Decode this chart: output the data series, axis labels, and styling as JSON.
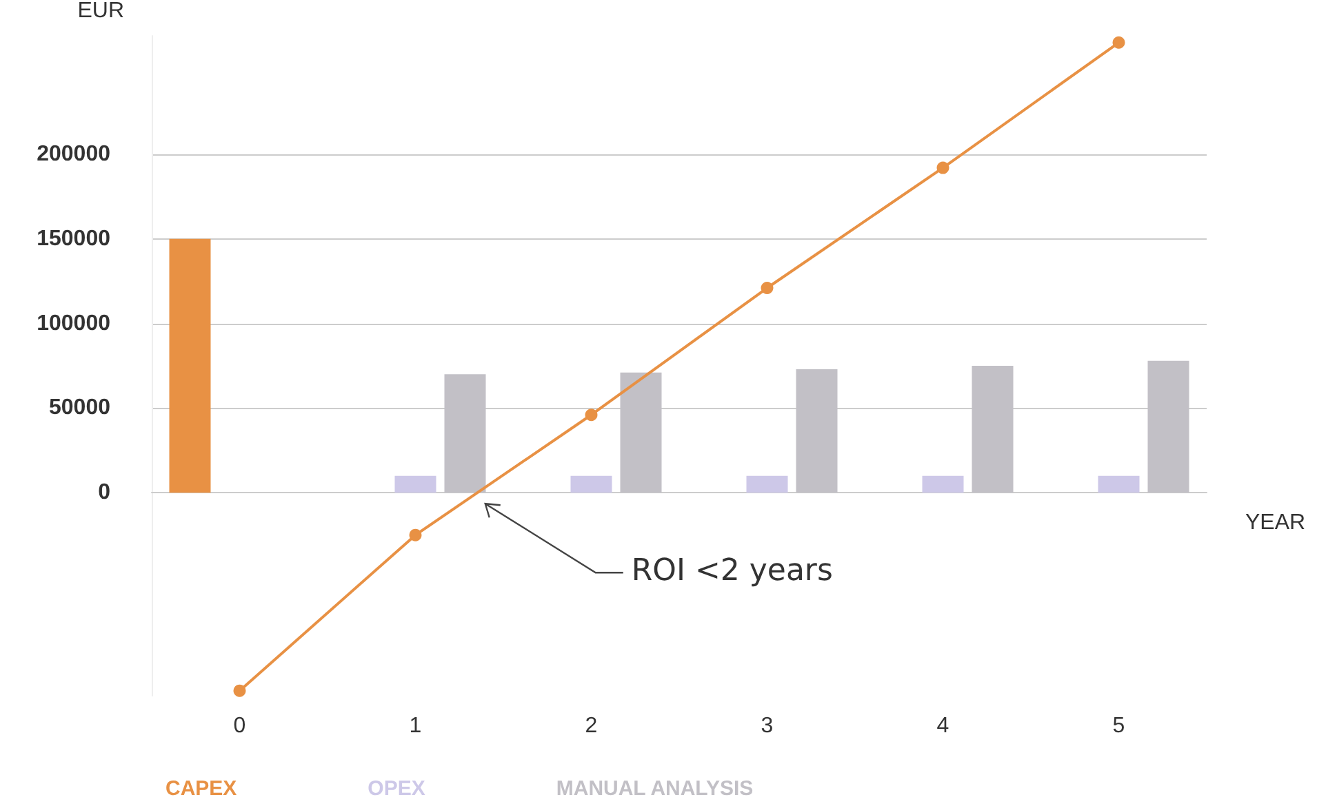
{
  "chart_data": {
    "type": "bar",
    "ylabel": "EUR",
    "xlabel": "YEAR",
    "categories": [
      "0",
      "1",
      "2",
      "3",
      "4",
      "5"
    ],
    "series": [
      {
        "name": "CAPEX",
        "color": "#e89144",
        "values": [
          150000,
          null,
          null,
          null,
          null,
          null
        ]
      },
      {
        "name": "OPEX",
        "color": "#cdc8e8",
        "values": [
          null,
          10000,
          10000,
          10000,
          10000,
          10000
        ]
      },
      {
        "name": "MANUAL ANALYSIS",
        "color": "#c2c0c6",
        "values": [
          null,
          70000,
          71000,
          73000,
          75000,
          78000
        ]
      },
      {
        "type": "line",
        "color": "#e89144",
        "values": [
          -117000,
          -25000,
          46000,
          121000,
          192000,
          266000
        ]
      }
    ],
    "ylim": [
      -120000,
      270000
    ],
    "yticks": [
      0,
      50000,
      100000,
      150000,
      200000
    ],
    "grid": "y",
    "legend": "bottom",
    "marker": "circle",
    "line_style": "solid",
    "annotations": [
      "ROI <2 years"
    ]
  }
}
